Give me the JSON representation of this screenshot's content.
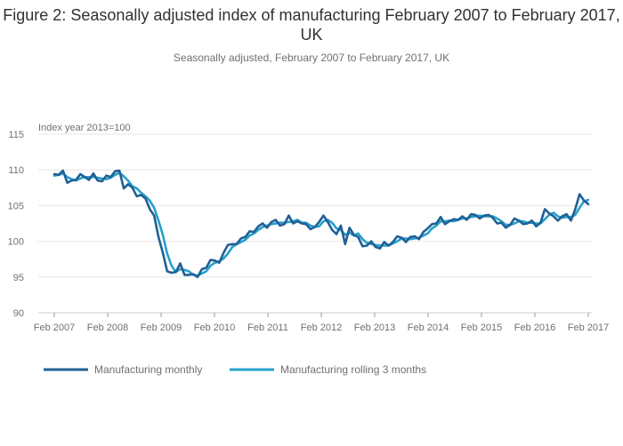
{
  "chart_data": {
    "type": "line",
    "title": "Figure 2: Seasonally adjusted index of manufacturing February 2007 to February 2017, UK",
    "subtitle": "Seasonally adjusted, February 2007 to February 2017, UK",
    "ylabel": "Index year 2013=100",
    "xlabel": "",
    "ylim": [
      90,
      115
    ],
    "yticks": [
      90,
      95,
      100,
      105,
      110,
      115
    ],
    "x_start": "Feb 2007",
    "x_end": "Feb 2017",
    "x_ticks": [
      "Feb 2007",
      "Feb 2008",
      "Feb 2009",
      "Feb 2010",
      "Feb 2011",
      "Feb 2012",
      "Feb 2013",
      "Feb 2014",
      "Feb 2015",
      "Feb 2016",
      "Feb 2017"
    ],
    "grid": "horizontal",
    "legend_position": "bottom-left",
    "series": [
      {
        "name": "Manufacturing monthly",
        "color": "#206095",
        "values": [
          109.4,
          109.3,
          109.9,
          108.2,
          108.5,
          108.6,
          109.4,
          109.0,
          108.6,
          109.5,
          108.5,
          108.4,
          109.2,
          109.0,
          109.8,
          109.9,
          107.4,
          108.0,
          107.5,
          106.3,
          106.5,
          106.0,
          104.5,
          103.6,
          100.6,
          98.4,
          95.8,
          95.6,
          95.7,
          96.9,
          95.3,
          95.3,
          95.4,
          95.0,
          96.1,
          96.3,
          97.4,
          97.3,
          97.0,
          98.4,
          99.5,
          99.6,
          99.6,
          100.4,
          100.6,
          101.4,
          101.3,
          102.1,
          102.5,
          101.9,
          102.7,
          103.0,
          102.2,
          102.4,
          103.6,
          102.5,
          102.8,
          102.5,
          102.4,
          101.7,
          102.0,
          102.7,
          103.6,
          102.7,
          101.6,
          101.0,
          102.2,
          99.6,
          101.9,
          100.9,
          100.6,
          99.3,
          99.4,
          100.0,
          99.2,
          99.0,
          99.9,
          99.4,
          99.9,
          100.7,
          100.5,
          99.9,
          100.6,
          100.7,
          100.3,
          101.3,
          101.8,
          102.4,
          102.5,
          103.4,
          102.4,
          102.8,
          103.1,
          103.0,
          103.5,
          103.0,
          103.8,
          103.7,
          103.2,
          103.6,
          103.7,
          103.3,
          102.5,
          102.6,
          101.9,
          102.3,
          103.2,
          102.9,
          102.4,
          102.5,
          102.9,
          102.1,
          102.6,
          104.5,
          103.9,
          103.5,
          102.9,
          103.5,
          103.8,
          102.9,
          104.5,
          106.6,
          105.7,
          105.2
        ]
      },
      {
        "name": "Manufacturing rolling 3 months",
        "color": "#27a0cc",
        "values": [
          109.2,
          109.3,
          109.5,
          109.0,
          108.7,
          108.5,
          108.8,
          109.0,
          109.0,
          109.0,
          108.9,
          108.8,
          108.7,
          108.9,
          109.3,
          109.6,
          109.1,
          108.5,
          107.7,
          107.4,
          106.8,
          106.3,
          105.7,
          104.7,
          102.9,
          100.9,
          98.3,
          96.6,
          95.7,
          96.1,
          96.0,
          95.8,
          95.3,
          95.2,
          95.5,
          95.8,
          96.6,
          97.0,
          97.2,
          97.6,
          98.3,
          99.2,
          99.6,
          99.9,
          100.2,
          100.8,
          101.1,
          101.6,
          102.0,
          102.2,
          102.4,
          102.5,
          102.6,
          102.6,
          102.7,
          102.8,
          103.0,
          102.6,
          102.6,
          102.2,
          102.0,
          102.1,
          102.8,
          103.0,
          102.6,
          101.8,
          101.6,
          100.9,
          101.2,
          100.8,
          101.1,
          100.3,
          99.8,
          99.6,
          99.5,
          99.4,
          99.4,
          99.4,
          99.7,
          100.0,
          100.4,
          100.4,
          100.3,
          100.4,
          100.5,
          100.8,
          101.1,
          101.8,
          102.2,
          102.8,
          102.8,
          102.9,
          102.8,
          103.0,
          103.2,
          103.2,
          103.4,
          103.5,
          103.6,
          103.5,
          103.5,
          103.5,
          103.2,
          102.8,
          102.3,
          102.3,
          102.5,
          102.8,
          102.8,
          102.6,
          102.6,
          102.5,
          102.5,
          103.1,
          103.7,
          104.0,
          103.5,
          103.3,
          103.4,
          103.4,
          103.7,
          104.7,
          105.6,
          105.8
        ]
      }
    ]
  }
}
